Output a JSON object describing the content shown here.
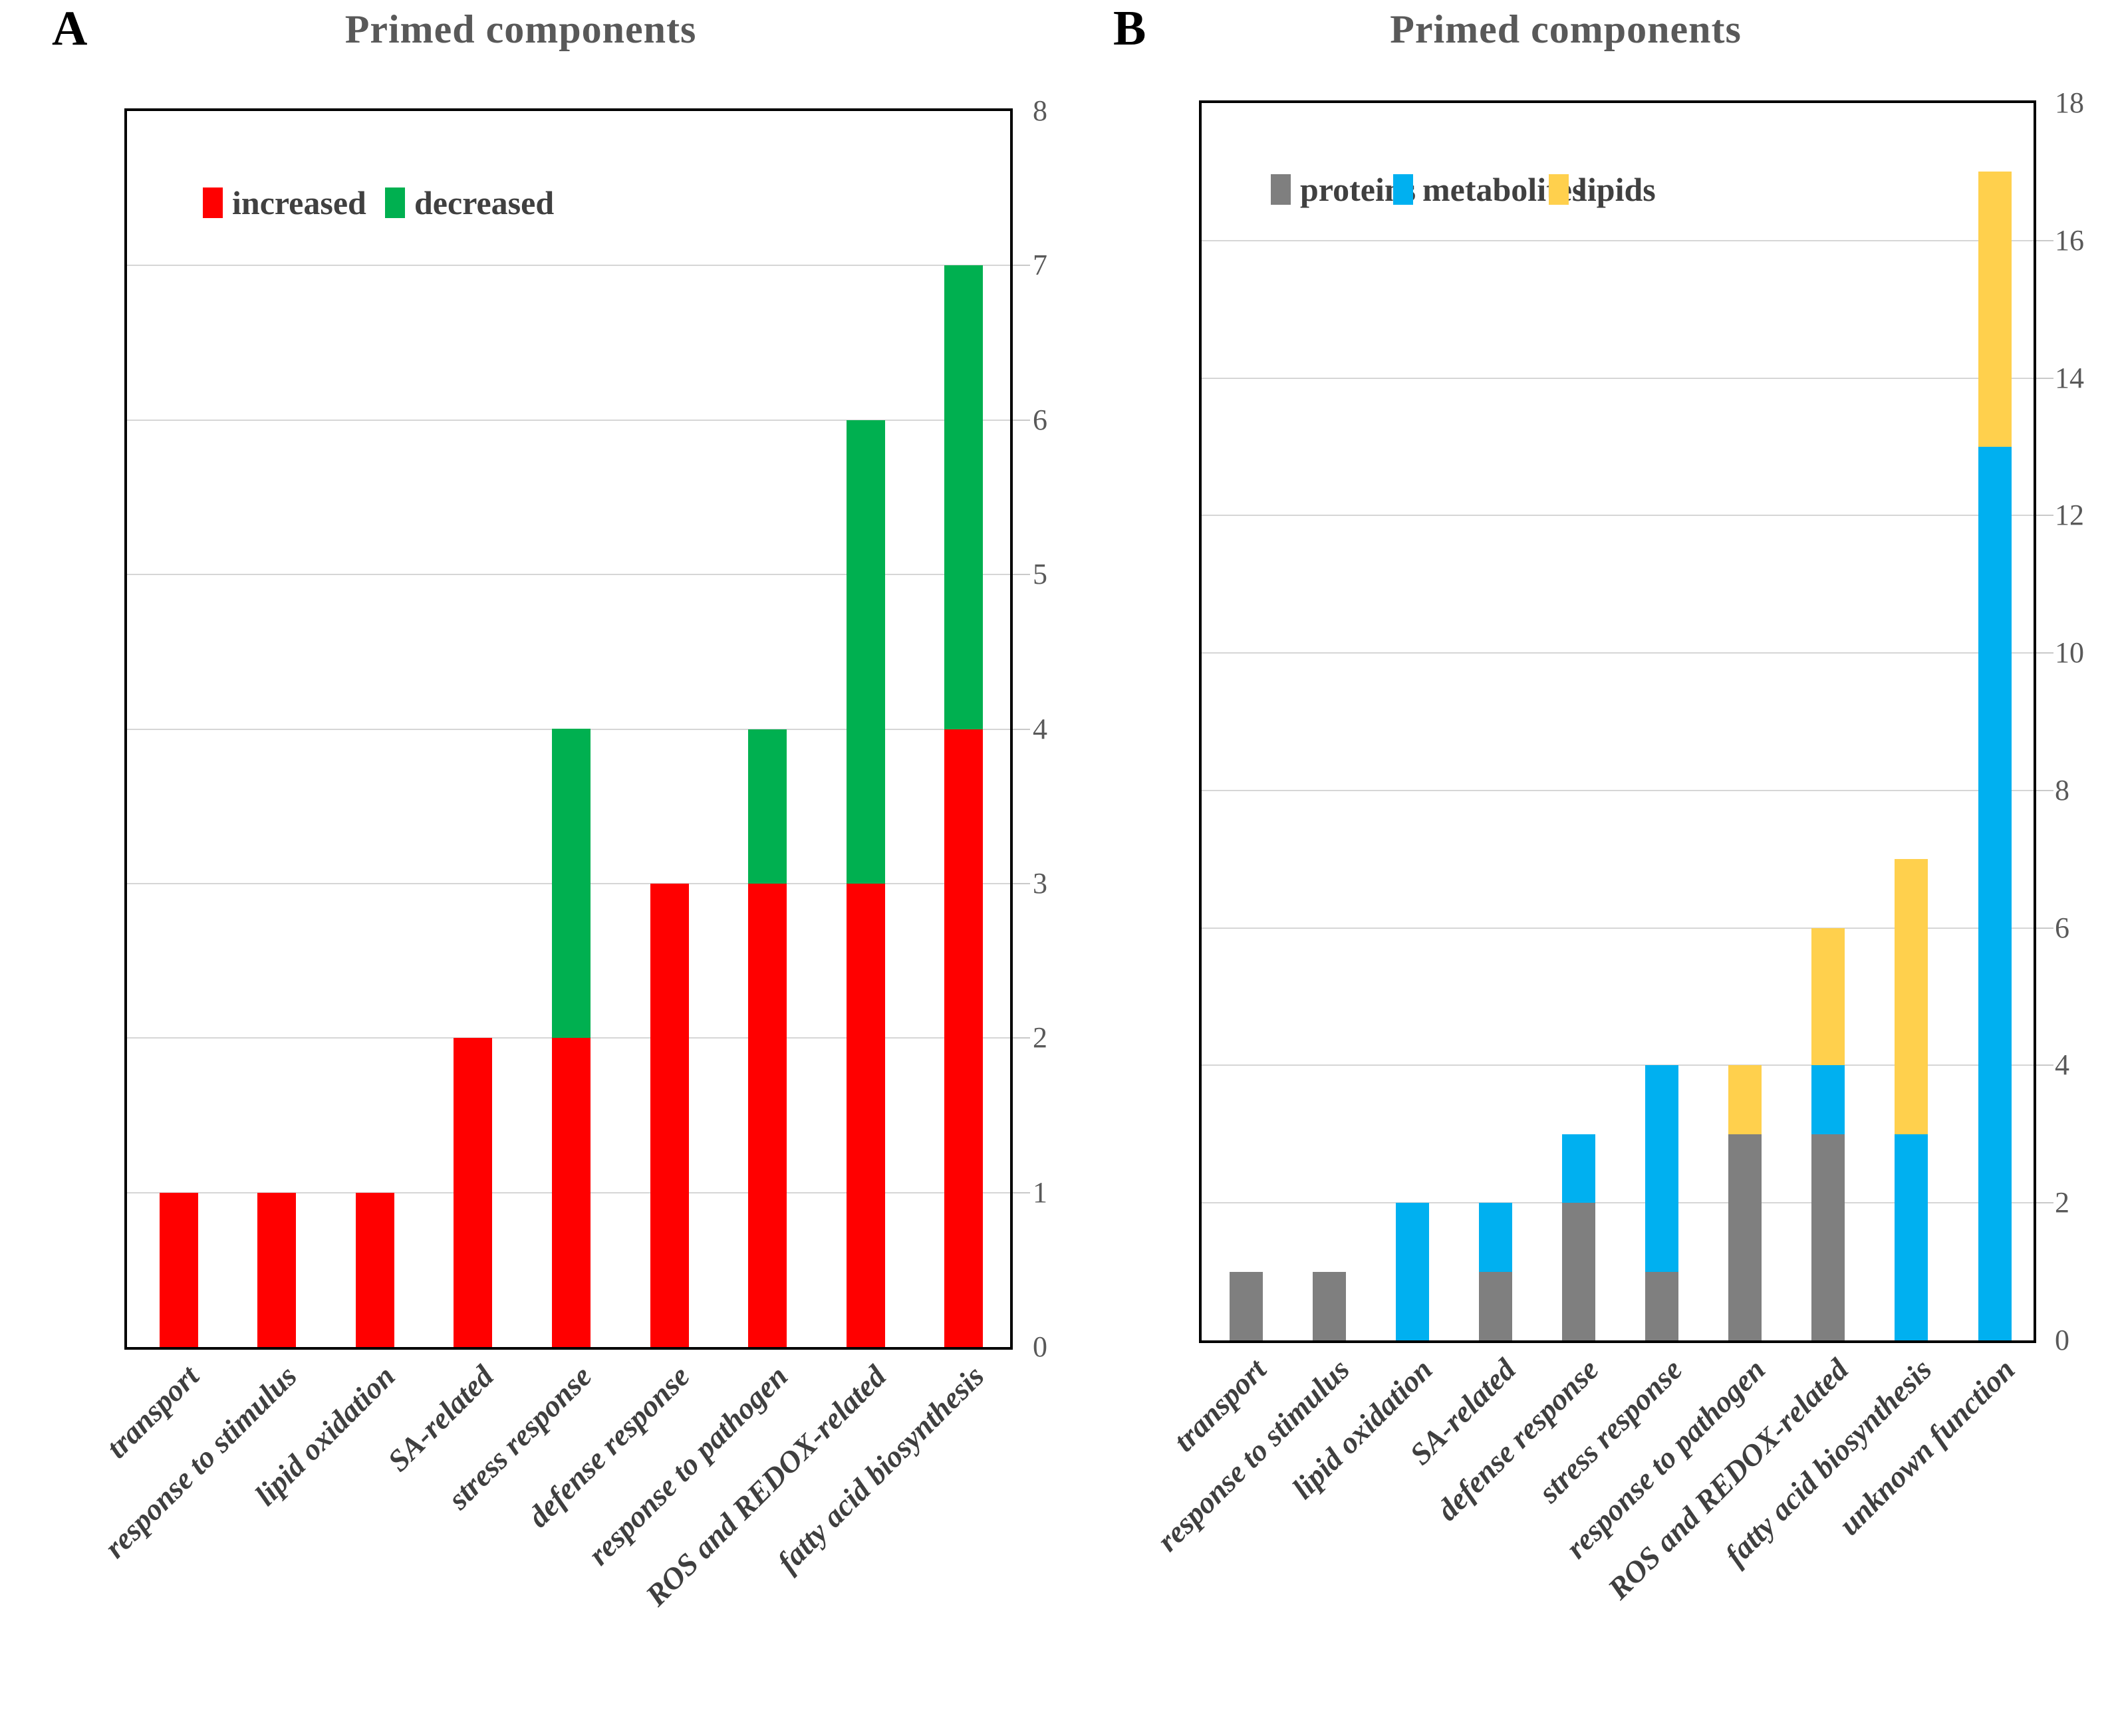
{
  "chart_data": [
    {
      "type": "bar",
      "stacked": true,
      "panel_label": "A",
      "title": "Primed components",
      "categories": [
        "transport",
        "response to stimulus",
        "lipid oxidation",
        "SA-related",
        "stress response",
        "defense response",
        "response to pathogen",
        "ROS and REDOX-related",
        "fatty acid biosynthesis"
      ],
      "series": [
        {
          "name": "increased",
          "color": "#FF0000",
          "values": [
            1,
            1,
            1,
            2,
            2,
            3,
            3,
            3,
            4
          ]
        },
        {
          "name": "decreased",
          "color": "#00B050",
          "values": [
            0,
            0,
            0,
            0,
            2,
            0,
            1,
            3,
            3
          ]
        }
      ],
      "ylim": [
        0,
        8
      ],
      "y_ticks": [
        0,
        1,
        2,
        3,
        4,
        5,
        6,
        7,
        8
      ],
      "y_axis_side": "right",
      "grid": true,
      "legend_position": "top-inside"
    },
    {
      "type": "bar",
      "stacked": true,
      "panel_label": "B",
      "title": "Primed components",
      "categories": [
        "transport",
        "response to stimulus",
        "lipid oxidation",
        "SA-related",
        "defense response",
        "stress response",
        "response to pathogen",
        "ROS and REDOX-related",
        "fatty acid biosynthesis",
        "unknown function"
      ],
      "series": [
        {
          "name": "proteins",
          "color": "#7F7F7F",
          "values": [
            1,
            1,
            0,
            1,
            2,
            1,
            3,
            3,
            0,
            0
          ]
        },
        {
          "name": "metabolites",
          "color": "#00B0F0",
          "values": [
            0,
            0,
            2,
            1,
            1,
            3,
            0,
            1,
            3,
            13
          ]
        },
        {
          "name": "lipids",
          "color": "#FFD04D",
          "values": [
            0,
            0,
            0,
            0,
            0,
            0,
            1,
            2,
            4,
            4
          ]
        }
      ],
      "ylim": [
        0,
        18
      ],
      "y_ticks": [
        0,
        2,
        4,
        6,
        8,
        10,
        12,
        14,
        16,
        18
      ],
      "y_axis_side": "right",
      "grid": true,
      "legend_position": "top-inside"
    }
  ]
}
